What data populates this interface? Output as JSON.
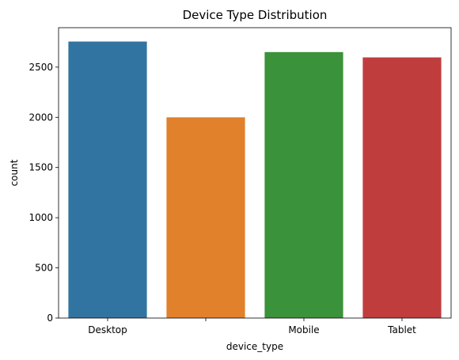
{
  "chart_data": {
    "type": "bar",
    "title": "Device Type Distribution",
    "xlabel": "device_type",
    "ylabel": "count",
    "categories": [
      "Desktop",
      "",
      "Mobile",
      "Tablet"
    ],
    "values": [
      2755,
      2000,
      2650,
      2597
    ],
    "colors": [
      "#3274a1",
      "#e1812c",
      "#3a923a",
      "#c03d3e"
    ],
    "ylim": [
      0,
      2893
    ],
    "yticks": [
      0,
      500,
      1000,
      1500,
      2000,
      2500
    ],
    "grid": false
  }
}
